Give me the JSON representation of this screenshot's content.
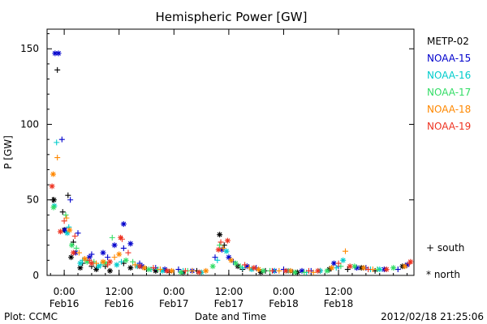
{
  "chart_data": {
    "type": "scatter",
    "title": "Hemispheric Power [GW]",
    "ylabel": "P [GW]",
    "xlabel": "Date and Time",
    "ylim": [
      0,
      163
    ],
    "xlim_hours_unused": null,
    "y_ticks": [
      0,
      50,
      100,
      150
    ],
    "y_tick_labels": [
      "0",
      "50",
      "100",
      "150"
    ],
    "x_ticks": [
      {
        "time": "2012-02-16 00:00",
        "label1": "0:00",
        "label2": "Feb16"
      },
      {
        "time": "2012-02-16 12:00",
        "label1": "12:00",
        "label2": "Feb16"
      },
      {
        "time": "2012-02-17 00:00",
        "label1": "0:00",
        "label2": "Feb17"
      },
      {
        "time": "2012-02-17 12:00",
        "label1": "12:00",
        "label2": "Feb17"
      },
      {
        "time": "2012-02-18 00:00",
        "label1": "0:00",
        "label2": "Feb18"
      },
      {
        "time": "2012-02-18 12:00",
        "label1": "12:00",
        "label2": "Feb18"
      }
    ],
    "x_range": [
      "2012-02-15 20:15",
      "2012-02-19 04:30"
    ],
    "legend": {
      "placement": "right",
      "marker_plus": "+ south",
      "marker_star": "* north"
    },
    "series": [
      {
        "name": "METP-02",
        "color": "#000000",
        "south": [
          [
            "2012-02-15 21:30",
            50
          ],
          [
            "2012-02-15 22:30",
            136
          ],
          [
            "2012-02-15 23:40",
            42
          ],
          [
            "2012-02-16 00:50",
            53
          ],
          [
            "2012-02-16 02:00",
            22
          ],
          [
            "2012-02-16 04:00",
            8
          ],
          [
            "2012-02-16 06:00",
            6
          ],
          [
            "2012-02-16 09:00",
            6
          ],
          [
            "2012-02-16 13:00",
            8
          ],
          [
            "2012-02-16 18:00",
            4
          ],
          [
            "2012-02-16 23:00",
            2
          ],
          [
            "2012-02-17 05:00",
            3
          ],
          [
            "2012-02-17 11:00",
            20
          ],
          [
            "2012-02-17 15:00",
            4
          ],
          [
            "2012-02-17 20:00",
            3
          ],
          [
            "2012-02-18 02:00",
            2
          ],
          [
            "2012-02-18 08:00",
            3
          ],
          [
            "2012-02-18 14:00",
            4
          ],
          [
            "2012-02-18 20:00",
            3
          ]
        ],
        "north": [
          [
            "2012-02-15 21:45",
            50
          ],
          [
            "2012-02-16 00:00",
            30
          ],
          [
            "2012-02-16 01:30",
            12
          ],
          [
            "2012-02-16 03:30",
            5
          ],
          [
            "2012-02-16 07:00",
            4
          ],
          [
            "2012-02-16 10:00",
            3
          ],
          [
            "2012-02-16 14:30",
            5
          ],
          [
            "2012-02-16 20:00",
            3
          ],
          [
            "2012-02-17 02:00",
            2
          ],
          [
            "2012-02-17 10:00",
            27
          ],
          [
            "2012-02-17 14:00",
            6
          ],
          [
            "2012-02-17 19:00",
            2
          ],
          [
            "2012-02-18 03:00",
            2
          ],
          [
            "2012-02-18 10:00",
            4
          ],
          [
            "2012-02-18 17:00",
            5
          ],
          [
            "2012-02-19 02:00",
            6
          ]
        ]
      },
      {
        "name": "NOAA-15",
        "color": "#0000cc",
        "south": [
          [
            "2012-02-15 23:30",
            90
          ],
          [
            "2012-02-16 01:20",
            50
          ],
          [
            "2012-02-16 03:00",
            28
          ],
          [
            "2012-02-16 06:00",
            14
          ],
          [
            "2012-02-16 09:30",
            12
          ],
          [
            "2012-02-16 13:00",
            18
          ],
          [
            "2012-02-16 16:30",
            8
          ],
          [
            "2012-02-16 20:00",
            5
          ],
          [
            "2012-02-17 01:00",
            4
          ],
          [
            "2012-02-17 09:00",
            12
          ],
          [
            "2012-02-17 13:00",
            9
          ],
          [
            "2012-02-17 18:00",
            5
          ],
          [
            "2012-02-18 00:00",
            4
          ],
          [
            "2012-02-18 06:00",
            3
          ],
          [
            "2012-02-18 12:00",
            6
          ],
          [
            "2012-02-18 18:00",
            5
          ],
          [
            "2012-02-19 01:00",
            4
          ]
        ],
        "north": [
          [
            "2012-02-15 22:00",
            147
          ],
          [
            "2012-02-15 22:45",
            147
          ],
          [
            "2012-02-16 00:10",
            30
          ],
          [
            "2012-02-16 02:30",
            15
          ],
          [
            "2012-02-16 05:30",
            12
          ],
          [
            "2012-02-16 08:30",
            15
          ],
          [
            "2012-02-16 11:00",
            20
          ],
          [
            "2012-02-16 13:00",
            34
          ],
          [
            "2012-02-16 14:30",
            21
          ],
          [
            "2012-02-16 17:00",
            6
          ],
          [
            "2012-02-16 22:00",
            4
          ],
          [
            "2012-02-17 04:00",
            3
          ],
          [
            "2012-02-17 10:30",
            17
          ],
          [
            "2012-02-17 12:00",
            12
          ],
          [
            "2012-02-17 16:00",
            6
          ],
          [
            "2012-02-17 22:00",
            3
          ],
          [
            "2012-02-18 04:00",
            3
          ],
          [
            "2012-02-18 11:00",
            8
          ],
          [
            "2012-02-18 16:00",
            5
          ],
          [
            "2012-02-18 22:00",
            4
          ],
          [
            "2012-02-19 03:00",
            7
          ]
        ]
      },
      {
        "name": "NOAA-16",
        "color": "#00cccc",
        "south": [
          [
            "2012-02-15 22:20",
            88
          ],
          [
            "2012-02-16 01:00",
            32
          ],
          [
            "2012-02-16 04:00",
            10
          ],
          [
            "2012-02-16 08:00",
            7
          ],
          [
            "2012-02-16 12:30",
            9
          ],
          [
            "2012-02-16 19:00",
            4
          ],
          [
            "2012-02-17 02:00",
            3
          ],
          [
            "2012-02-17 09:30",
            10
          ],
          [
            "2012-02-17 15:00",
            5
          ],
          [
            "2012-02-17 22:00",
            3
          ],
          [
            "2012-02-18 05:00",
            2
          ],
          [
            "2012-02-18 11:30",
            5
          ],
          [
            "2012-02-18 19:00",
            4
          ]
        ],
        "north": [
          [
            "2012-02-15 21:50",
            46
          ],
          [
            "2012-02-16 00:40",
            28
          ],
          [
            "2012-02-16 03:30",
            8
          ],
          [
            "2012-02-16 07:30",
            6
          ],
          [
            "2012-02-16 11:30",
            7
          ],
          [
            "2012-02-16 16:00",
            6
          ],
          [
            "2012-02-16 21:30",
            3
          ],
          [
            "2012-02-17 06:00",
            2
          ],
          [
            "2012-02-17 11:30",
            16
          ],
          [
            "2012-02-17 17:00",
            4
          ],
          [
            "2012-02-18 01:00",
            3
          ],
          [
            "2012-02-18 08:00",
            3
          ],
          [
            "2012-02-18 13:00",
            10
          ],
          [
            "2012-02-18 21:00",
            4
          ]
        ]
      },
      {
        "name": "NOAA-17",
        "color": "#33dd66",
        "south": [
          [
            "2012-02-16 00:20",
            40
          ],
          [
            "2012-02-16 02:40",
            18
          ],
          [
            "2012-02-16 06:30",
            9
          ],
          [
            "2012-02-16 10:30",
            25
          ],
          [
            "2012-02-16 15:00",
            9
          ],
          [
            "2012-02-16 20:30",
            4
          ],
          [
            "2012-02-17 03:00",
            3
          ],
          [
            "2012-02-17 10:00",
            20
          ],
          [
            "2012-02-17 14:30",
            6
          ],
          [
            "2012-02-17 21:00",
            3
          ],
          [
            "2012-02-18 04:30",
            2
          ],
          [
            "2012-02-18 12:30",
            6
          ],
          [
            "2012-02-18 20:30",
            4
          ]
        ],
        "north": [
          [
            "2012-02-15 21:40",
            45
          ],
          [
            "2012-02-16 01:40",
            20
          ],
          [
            "2012-02-16 05:00",
            9
          ],
          [
            "2012-02-16 09:00",
            8
          ],
          [
            "2012-02-16 13:30",
            10
          ],
          [
            "2012-02-16 18:30",
            4
          ],
          [
            "2012-02-17 01:30",
            2
          ],
          [
            "2012-02-17 08:30",
            6
          ],
          [
            "2012-02-17 13:30",
            8
          ],
          [
            "2012-02-17 19:30",
            3
          ],
          [
            "2012-02-18 02:30",
            2
          ],
          [
            "2012-02-18 09:30",
            3
          ],
          [
            "2012-02-18 15:30",
            6
          ],
          [
            "2012-02-19 00:00",
            5
          ]
        ]
      },
      {
        "name": "NOAA-18",
        "color": "#ff8800",
        "south": [
          [
            "2012-02-15 22:30",
            78
          ],
          [
            "2012-02-16 00:30",
            38
          ],
          [
            "2012-02-16 03:15",
            15
          ],
          [
            "2012-02-16 07:00",
            8
          ],
          [
            "2012-02-16 11:00",
            12
          ],
          [
            "2012-02-16 15:30",
            7
          ],
          [
            "2012-02-16 21:00",
            4
          ],
          [
            "2012-02-17 04:00",
            3
          ],
          [
            "2012-02-17 10:45",
            18
          ],
          [
            "2012-02-17 16:30",
            5
          ],
          [
            "2012-02-17 23:00",
            3
          ],
          [
            "2012-02-18 06:30",
            2
          ],
          [
            "2012-02-18 13:30",
            16
          ],
          [
            "2012-02-18 19:30",
            4
          ]
        ],
        "north": [
          [
            "2012-02-15 21:35",
            67
          ],
          [
            "2012-02-16 01:10",
            30
          ],
          [
            "2012-02-16 04:30",
            11
          ],
          [
            "2012-02-16 08:30",
            9
          ],
          [
            "2012-02-16 12:00",
            14
          ],
          [
            "2012-02-16 17:30",
            5
          ],
          [
            "2012-02-16 23:30",
            3
          ],
          [
            "2012-02-17 07:00",
            3
          ],
          [
            "2012-02-17 12:30",
            10
          ],
          [
            "2012-02-17 18:30",
            4
          ],
          [
            "2012-02-18 01:30",
            3
          ],
          [
            "2012-02-18 10:30",
            5
          ],
          [
            "2012-02-18 17:30",
            5
          ],
          [
            "2012-02-19 02:30",
            6
          ]
        ]
      },
      {
        "name": "NOAA-19",
        "color": "#ee3322",
        "south": [
          [
            "2012-02-16 00:00",
            36
          ],
          [
            "2012-02-16 02:20",
            26
          ],
          [
            "2012-02-16 05:30",
            10
          ],
          [
            "2012-02-16 09:30",
            7
          ],
          [
            "2012-02-16 12:40",
            24
          ],
          [
            "2012-02-16 14:00",
            15
          ],
          [
            "2012-02-16 19:30",
            5
          ],
          [
            "2012-02-17 02:30",
            3
          ],
          [
            "2012-02-17 10:15",
            22
          ],
          [
            "2012-02-17 15:30",
            7
          ],
          [
            "2012-02-17 21:30",
            3
          ],
          [
            "2012-02-18 05:30",
            3
          ],
          [
            "2012-02-18 12:00",
            8
          ],
          [
            "2012-02-18 18:30",
            4
          ],
          [
            "2012-02-19 03:30",
            8
          ]
        ],
        "north": [
          [
            "2012-02-15 21:20",
            59
          ],
          [
            "2012-02-15 23:10",
            29
          ],
          [
            "2012-02-16 02:00",
            15
          ],
          [
            "2012-02-16 06:00",
            8
          ],
          [
            "2012-02-16 10:00",
            9
          ],
          [
            "2012-02-16 12:20",
            25
          ],
          [
            "2012-02-16 16:30",
            6
          ],
          [
            "2012-02-16 22:30",
            3
          ],
          [
            "2012-02-17 05:30",
            2
          ],
          [
            "2012-02-17 09:45",
            17
          ],
          [
            "2012-02-17 11:45",
            23
          ],
          [
            "2012-02-17 17:30",
            5
          ],
          [
            "2012-02-18 00:30",
            3
          ],
          [
            "2012-02-18 07:30",
            3
          ],
          [
            "2012-02-18 14:30",
            6
          ],
          [
            "2012-02-18 22:30",
            4
          ],
          [
            "2012-02-19 03:45",
            9
          ]
        ]
      }
    ]
  },
  "footer": {
    "left": "Plot: CCMC",
    "right": "2012/02/18 21:25:06"
  }
}
